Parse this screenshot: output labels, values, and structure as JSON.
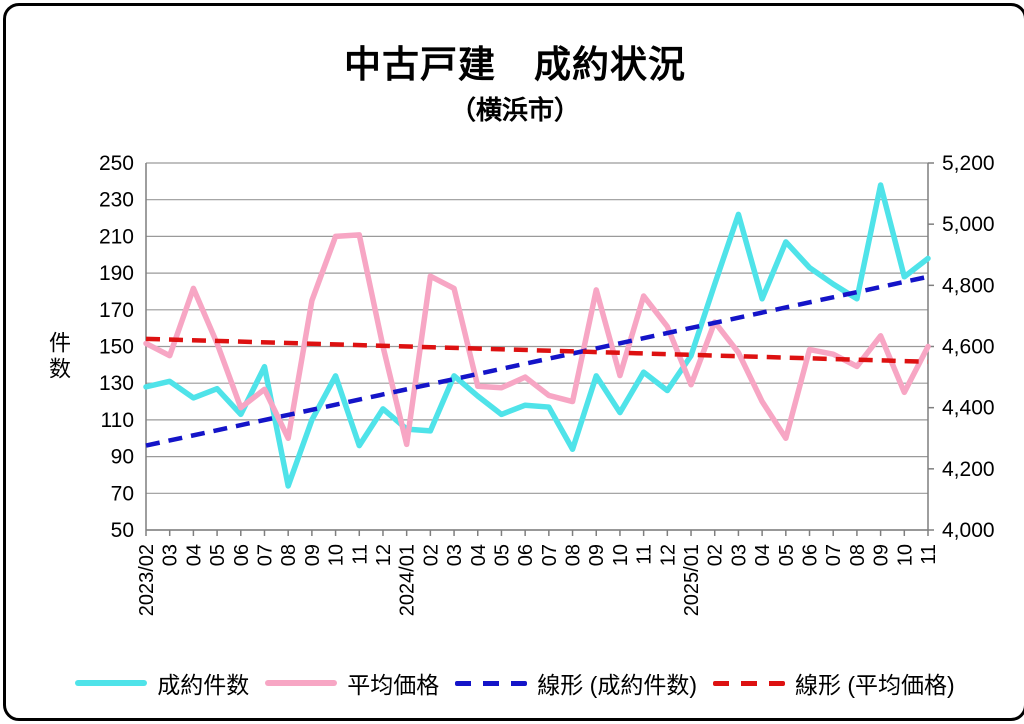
{
  "title": "中古戸建　成約状況",
  "subtitle": "（横浜市）",
  "y_axis_left_title": "件数",
  "chart_data": {
    "type": "line",
    "categories": [
      "2023/02",
      "03",
      "04",
      "05",
      "06",
      "07",
      "08",
      "09",
      "10",
      "11",
      "12",
      "2024/01",
      "02",
      "03",
      "04",
      "05",
      "06",
      "07",
      "08",
      "09",
      "10",
      "11",
      "12",
      "2025/01",
      "02",
      "03",
      "04",
      "05",
      "06",
      "07",
      "08",
      "09",
      "10",
      "11"
    ],
    "series": [
      {
        "name": "成約件数",
        "axis": "left",
        "style": "solid",
        "color": "#4fe3e9",
        "values": [
          128,
          131,
          122,
          127,
          113,
          139,
          74,
          110,
          134,
          96,
          116,
          105,
          104,
          134,
          123,
          113,
          118,
          117,
          94,
          134,
          114,
          136,
          126,
          145,
          184,
          222,
          176,
          207,
          193,
          184,
          176,
          238,
          188,
          198
        ]
      },
      {
        "name": "平均価格",
        "axis": "right",
        "style": "solid",
        "color": "#f7a6c4",
        "values": [
          4610,
          4570,
          4790,
          4610,
          4400,
          4460,
          4300,
          4750,
          4960,
          4965,
          4600,
          4280,
          4830,
          4790,
          4470,
          4465,
          4500,
          4440,
          4420,
          4785,
          4505,
          4765,
          4665,
          4475,
          4680,
          4580,
          4420,
          4300,
          4590,
          4575,
          4535,
          4635,
          4450,
          4600
        ]
      },
      {
        "name": "線形 (成約件数)",
        "axis": "left",
        "style": "dashed",
        "color": "#1414c8",
        "trend_start": 96,
        "trend_end": 188
      },
      {
        "name": "線形 (平均価格)",
        "axis": "right",
        "style": "dashed",
        "color": "#dd1111",
        "trend_start": 4625,
        "trend_end": 4550
      }
    ],
    "y_left": {
      "min": 50,
      "max": 250,
      "step": 20
    },
    "y_right": {
      "min": 4000,
      "max": 5200,
      "step": 200
    },
    "grid": true,
    "legend_position": "bottom"
  },
  "colors": {
    "grid": "#9a9a9a",
    "axis": "#7f7f7f",
    "text": "#000000"
  }
}
